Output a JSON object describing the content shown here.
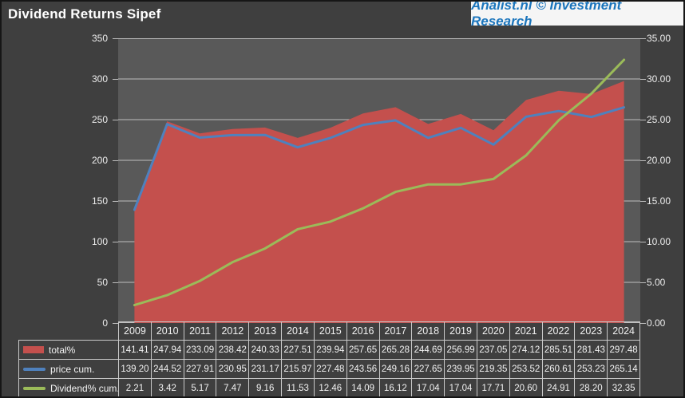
{
  "header": {
    "title": "Dividend Returns Sipef",
    "brand": "Analist.nl © Investment Research"
  },
  "colors": {
    "page_background": "#3F3F3F",
    "plot_background": "#595959",
    "gridline": "#BDBDBD",
    "axis_text": "#EDEDED",
    "table_border": "#C9C9C9",
    "table_text": "#F2F2F2",
    "badge_background": "#F5F5F5",
    "brand_blue": "#1B75BC",
    "series_red": "#C4504D",
    "series_blue": "#4F81BD",
    "series_green": "#9BBB59"
  },
  "chart_data": {
    "type": "area-line-combo",
    "title": "Dividend Returns Sipef",
    "grid": true,
    "legend_position": "table-left",
    "categories": [
      "2009",
      "2010",
      "2011",
      "2012",
      "2013",
      "2014",
      "2015",
      "2016",
      "2017",
      "2018",
      "2019",
      "2020",
      "2021",
      "2022",
      "2023",
      "2024"
    ],
    "series": [
      {
        "name": "total%",
        "type": "area",
        "axis": "left",
        "color": "#C4504D",
        "values": [
          141.41,
          247.94,
          233.09,
          238.42,
          240.33,
          227.51,
          239.94,
          257.65,
          265.28,
          244.69,
          256.99,
          237.05,
          274.12,
          285.51,
          281.43,
          297.48
        ]
      },
      {
        "name": "price cum.",
        "type": "line",
        "axis": "left",
        "color": "#4F81BD",
        "values": [
          139.2,
          244.52,
          227.91,
          230.95,
          231.17,
          215.97,
          227.48,
          243.56,
          249.16,
          227.65,
          239.95,
          219.35,
          253.52,
          260.61,
          253.23,
          265.14
        ]
      },
      {
        "name": "Dividend% cum.",
        "type": "line",
        "axis": "right",
        "color": "#9BBB59",
        "values": [
          2.21,
          3.42,
          5.17,
          7.47,
          9.16,
          11.53,
          12.46,
          14.09,
          16.12,
          17.04,
          17.04,
          17.71,
          20.6,
          24.91,
          28.2,
          32.35
        ]
      }
    ],
    "left_axis": {
      "min": 0,
      "max": 350,
      "step": 50,
      "labels": [
        "0",
        "50",
        "100",
        "150",
        "200",
        "250",
        "300",
        "350"
      ]
    },
    "right_axis": {
      "min": 0,
      "max": 35,
      "step": 5,
      "labels": [
        "0.00",
        "5.00",
        "10.00",
        "15.00",
        "20.00",
        "25.00",
        "30.00",
        "35.00"
      ]
    },
    "value_format_decimals": 2
  }
}
